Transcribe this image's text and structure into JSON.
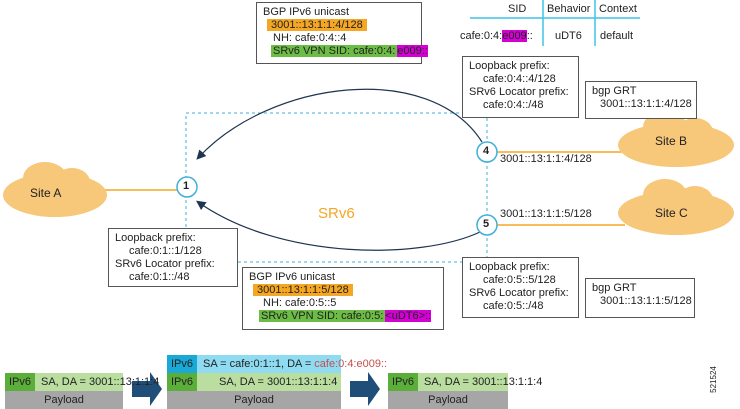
{
  "top_bgp": {
    "title": "BGP IPv6 unicast",
    "prefix": "3001::13:1:1:4/128",
    "nh": "NH: cafe:0:4::4",
    "sid_label": "SRv6 VPN SID: cafe:0:4:",
    "sid_func": "e009::"
  },
  "sid_table": {
    "headers": [
      "SID",
      "Behavior",
      "Context"
    ],
    "row": {
      "sid_prefix": "cafe:0:4:",
      "sid_func": "e009",
      "sid_suffix": "::",
      "behavior": "uDT6",
      "context": "default"
    }
  },
  "node4_info": {
    "line1": "Loopback prefix:",
    "line2": "cafe:0:4::4/128",
    "line3": "SRv6 Locator prefix:",
    "line4": "cafe:0:4::/48"
  },
  "node4_grt": {
    "title": "bgp GRT",
    "prefix": "3001::13:1:1:4/128"
  },
  "node1_info": {
    "line1": "Loopback prefix:",
    "line2": "cafe:0:1::1/128",
    "line3": "SRv6 Locator prefix:",
    "line4": "cafe:0:1::/48"
  },
  "bottom_bgp": {
    "title": "BGP IPv6 unicast",
    "prefix": "3001::13:1:1:5/128",
    "nh": "NH: cafe:0:5::5",
    "sid_label": "SRv6 VPN SID: cafe:0:5:",
    "sid_func": "<uDT6>::"
  },
  "node5_info": {
    "line1": "Loopback prefix:",
    "line2": "cafe:0:5::5/128",
    "line3": "SRv6 Locator prefix:",
    "line4": "cafe:0:5::/48"
  },
  "node5_grt": {
    "title": "bgp GRT",
    "prefix": "3001::13:1:1:5/128"
  },
  "sites": {
    "a": "Site A",
    "b": "Site B",
    "c": "Site C"
  },
  "nodes": {
    "n1": "1",
    "n4": "4",
    "n5": "5"
  },
  "links": {
    "b_prefix": "3001::13:1:1:4/128",
    "c_prefix": "3001::13:1:1:5/128"
  },
  "domain_label": "SRv6",
  "packets": {
    "ingress": {
      "tag": "IPv6",
      "header": "SA, DA = 3001::13:1:1:4",
      "payload": "Payload"
    },
    "core": {
      "outer_tag": "IPv6",
      "outer_sa": "SA = cafe:0:1::1, DA = ",
      "outer_da": "cafe:0:4:e009::",
      "inner_tag": "IPv6",
      "inner_header": "SA, DA = 3001::13:1:1:4",
      "payload": "Payload"
    },
    "egress": {
      "tag": "IPv6",
      "header": "SA, DA = 3001::13:1:1:4",
      "payload": "Payload"
    }
  },
  "figure_id": "521524",
  "colors": {
    "orange": "#f5a623",
    "green": "#6cbd45",
    "light_green": "#b9dea0",
    "dark_green": "#5cae3a",
    "magenta": "#d400d4",
    "cyan": "#3fc4e8",
    "light_cyan": "#8fdcf2",
    "gray": "#a6a6a6",
    "arrow": "#1f4e79",
    "cloud": "#f7c77a"
  }
}
